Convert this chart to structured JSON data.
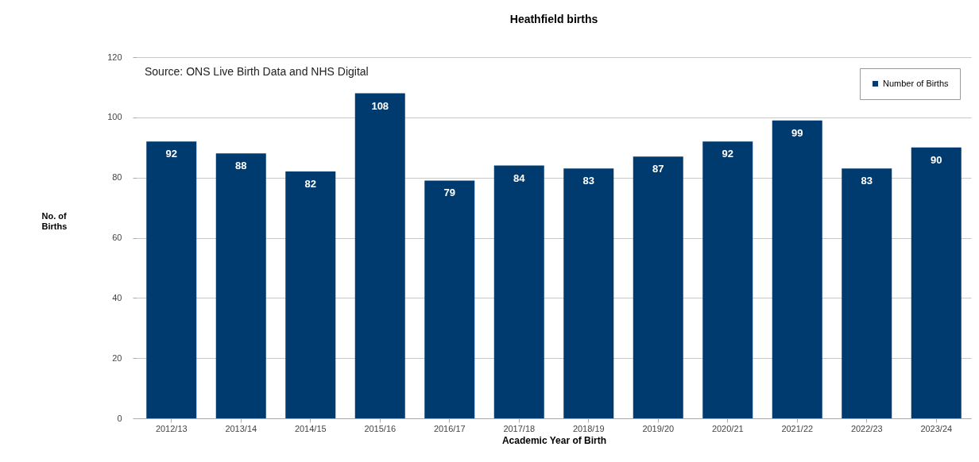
{
  "chart_data": {
    "type": "bar",
    "title": "Heathfield births",
    "xlabel": "Academic Year of Birth",
    "ylabel": "No. of\nBirths",
    "categories": [
      "2012/13",
      "2013/14",
      "2014/15",
      "2015/16",
      "2016/17",
      "2017/18",
      "2018/19",
      "2019/20",
      "2020/21",
      "2021/22",
      "2022/23",
      "2023/24"
    ],
    "series": [
      {
        "name": "Number of Births",
        "color": "#003b70",
        "values": [
          92,
          88,
          82,
          108,
          79,
          84,
          83,
          87,
          92,
          99,
          83,
          90
        ]
      }
    ],
    "ylim": [
      0,
      120
    ],
    "yticks": [
      0,
      20,
      40,
      60,
      80,
      100,
      120
    ],
    "grid": "y",
    "data_labels": true,
    "legend": "top right",
    "annotations": [
      "Source: ONS Live Birth Data and NHS Digital"
    ]
  }
}
